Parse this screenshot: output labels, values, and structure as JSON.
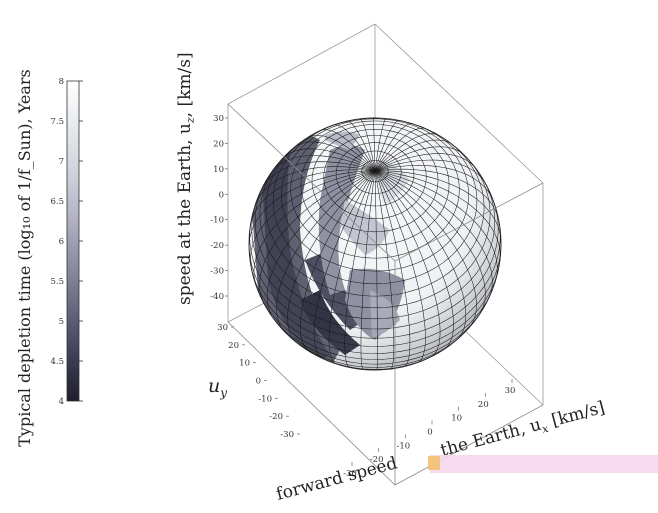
{
  "chart_data": {
    "type": "surface",
    "colorbar": {
      "label": "Typical depletion time (log₁₀ of 1/f_Sun), Years",
      "min": 4,
      "max": 8,
      "ticks": [
        "4",
        "4.5",
        "5",
        "5.5",
        "6",
        "6.5",
        "7",
        "7.5",
        "8"
      ],
      "colormap": [
        "#1e1e2c",
        "#3f3f58",
        "#66667e",
        "#8d8da3",
        "#b2b2c4",
        "#cfd3dc",
        "#e6eaee",
        "#ffffff"
      ]
    },
    "axes": {
      "x": {
        "label": "forward speed at the Earth, u_x [km/s]",
        "label_visible": "forward speed",
        "label_tail": "the Earth, u",
        "label_unit": "[km/s]",
        "ticks": [
          "-30",
          "-20",
          "-10",
          "0",
          "10",
          "20",
          "30"
        ]
      },
      "y": {
        "label": "u_y",
        "label_visible": "u",
        "ticks": [
          "30",
          "20",
          "10",
          "0",
          "-10",
          "-20",
          "-30"
        ]
      },
      "z": {
        "label": "speed at the Earth, u_z [km/s]",
        "label_visible": "speed at the Earth, u",
        "label_unit": "[km/s]",
        "ticks": [
          "30",
          "20",
          "10",
          "0",
          "-10",
          "-20",
          "-30",
          "-40"
        ]
      }
    },
    "sphere": {
      "description": "Shaded velocity sphere, darker = shorter depletion time",
      "grid": "latitude/longitude mesh",
      "value_range": [
        4,
        8
      ]
    }
  }
}
